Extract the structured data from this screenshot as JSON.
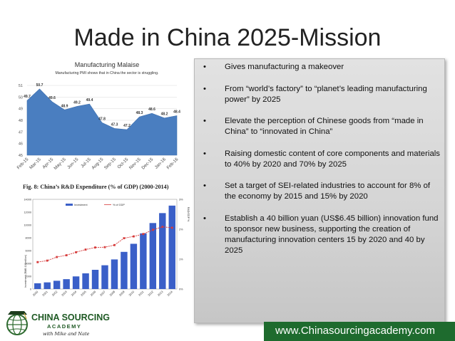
{
  "slide": {
    "title": "Made in China 2025-Mission",
    "footer_url": "www.Chinasourcingacademy.com"
  },
  "bullets": [
    "Gives manufacturing a makeover",
    "From “world’s factory” to “planet’s leading manufacturing power” by 2025",
    "Elevate the perception of Chinese goods from “made in China” to “innovated in China”",
    "Raising domestic content of core components and materials to 40% by 2020 and 70% by 2025",
    "Set a target of SEI-related industries to account for 8% of the economy by 2015 and 15% by 2020",
    "Establish a 40 billion yuan (US$6.45 billion) innovation fund to sponsor new business, supporting the creation of manufacturing innovation centers 15 by 2020 and 40 by 2025"
  ],
  "bullet_marker": "•",
  "logo": {
    "line1": "CHINA SOURCING",
    "line2": "ACADEMY",
    "line3": "with Mike and Nate"
  },
  "chart_data": [
    {
      "type": "area",
      "title": "Manufacturing Malaise",
      "subtitle": "Manufacturing PMI shows that in China the sector is struggling.",
      "categories": [
        "Feb-15",
        "Mar-15",
        "Apr-15",
        "May-15",
        "Jun-15",
        "Jul-15",
        "Aug-15",
        "Sep-15",
        "Oct-15",
        "Nov-15",
        "Dec-15",
        "Jan-16",
        "Feb-16"
      ],
      "values": [
        49.7,
        50.7,
        49.6,
        48.9,
        49.2,
        49.4,
        47.8,
        47.3,
        47.2,
        48.3,
        48.6,
        48.2,
        48.4
      ],
      "value_labels": [
        "49.7",
        "50.7",
        "49.6",
        "48.9",
        "49.2",
        "49.4",
        "47.8",
        "47.3",
        "47.2",
        "48.3",
        "48.6",
        "48.2",
        "48.4"
      ],
      "yticks": [
        "45",
        "46",
        "47",
        "48",
        "49",
        "50",
        "51"
      ],
      "ylim": [
        45,
        51
      ],
      "grid": true,
      "color": "#4a7ec0"
    },
    {
      "type": "bar",
      "title": "Fig. 8: China’s R&D Expenditure (% of GDP) (2000-2014)",
      "categories": [
        "2000",
        "2001",
        "2002",
        "2003",
        "2004",
        "2005",
        "2006",
        "2007",
        "2008",
        "2009",
        "2010",
        "2011",
        "2012",
        "2013",
        "2014"
      ],
      "series": [
        {
          "name": "Investment",
          "values": [
            900,
            1040,
            1290,
            1540,
            1970,
            2450,
            3000,
            3710,
            4620,
            5800,
            7060,
            8690,
            10300,
            11850,
            13020
          ]
        },
        {
          "name": "% of GDP",
          "values": [
            0.9,
            0.95,
            1.07,
            1.13,
            1.23,
            1.32,
            1.39,
            1.4,
            1.47,
            1.7,
            1.76,
            1.84,
            1.98,
            2.08,
            2.05
          ]
        }
      ],
      "ylabel": "Investment (RMB 100million)",
      "y2label": "R&D/GDP %",
      "yticks": [
        "0",
        "2000",
        "4000",
        "6000",
        "8000",
        "10000",
        "12000",
        "14000"
      ],
      "y2ticks": [
        "0%",
        "1%",
        "2%",
        "3%"
      ],
      "ylim": [
        0,
        14000
      ],
      "y2lim": [
        0,
        3
      ],
      "legend": "top-center",
      "bar_color": "#3a5fc8",
      "line_color": "#d63a3a"
    }
  ]
}
